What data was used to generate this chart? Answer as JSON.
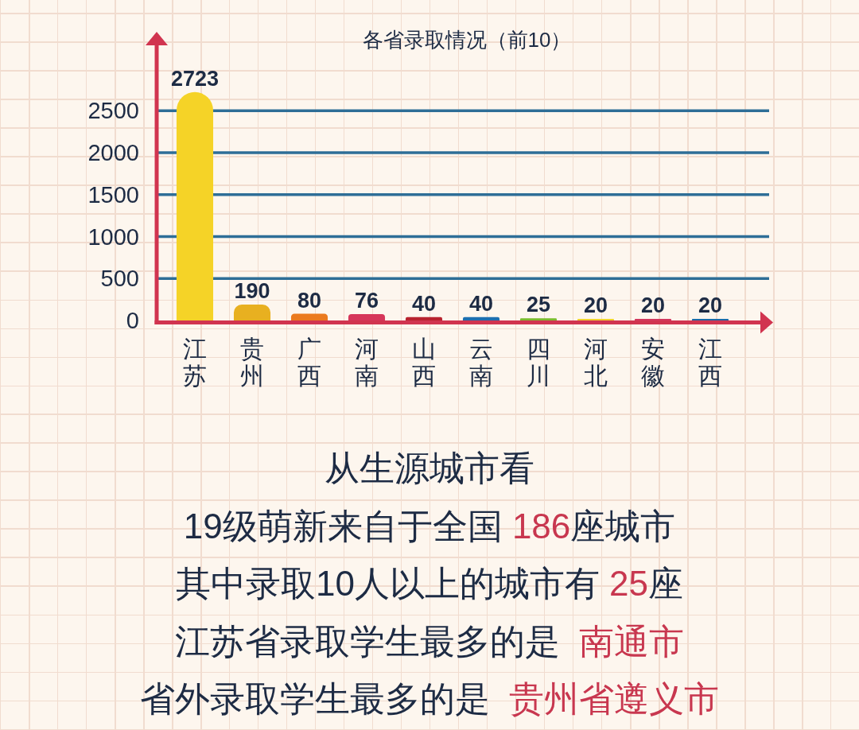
{
  "chart_data": {
    "type": "bar",
    "title": "各省录取情况（前10）",
    "categories": [
      "江苏",
      "贵州",
      "广西",
      "河南",
      "山西",
      "云南",
      "四川",
      "河北",
      "安徽",
      "江西"
    ],
    "values": [
      2723,
      190,
      80,
      76,
      40,
      40,
      25,
      20,
      20,
      20
    ],
    "colors": [
      "#f5d327",
      "#e8b020",
      "#eb7a1e",
      "#d6365a",
      "#b8222e",
      "#1d6fb0",
      "#7cbb2e",
      "#f2d22e",
      "#d3385e",
      "#1e6aa8"
    ],
    "ylim": [
      0,
      3300
    ],
    "yticks": [
      0,
      500,
      1000,
      1500,
      2000,
      2500
    ],
    "grid": "y",
    "data_labels": true,
    "annotations": [
      "从生源城市看",
      "19级萌新来自于全国 186座城市",
      "其中录取10人以上的城市有 25座",
      "江苏省录取学生最多的是  南通市",
      "省外录取学生最多的是  贵州省遵义市"
    ]
  }
}
